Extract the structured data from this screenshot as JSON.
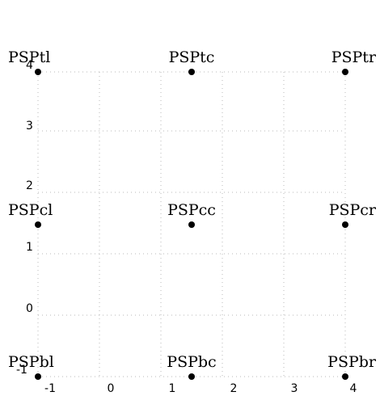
{
  "diagram": {
    "grid_visible": true,
    "x_ticks": [
      "-1",
      "0",
      "1",
      "2",
      "3",
      "4"
    ],
    "y_ticks": [
      "0",
      "1",
      "2",
      "3",
      "4"
    ],
    "y_bottom_tick": "-1",
    "points": [
      {
        "label": "PSPtl",
        "row": "top",
        "col": "left"
      },
      {
        "label": "PSPtc",
        "row": "top",
        "col": "center"
      },
      {
        "label": "PSPtr",
        "row": "top",
        "col": "right"
      },
      {
        "label": "PSPcl",
        "row": "center",
        "col": "left"
      },
      {
        "label": "PSPcc",
        "row": "center",
        "col": "center"
      },
      {
        "label": "PSPcr",
        "row": "center",
        "col": "right"
      },
      {
        "label": "PSPbl",
        "row": "bottom",
        "col": "left"
      },
      {
        "label": "PSPbc",
        "row": "bottom",
        "col": "center"
      },
      {
        "label": "PSPbr",
        "row": "bottom",
        "col": "right"
      }
    ],
    "colors": {
      "point": "#000000",
      "grid": "#b8b8b8"
    }
  }
}
